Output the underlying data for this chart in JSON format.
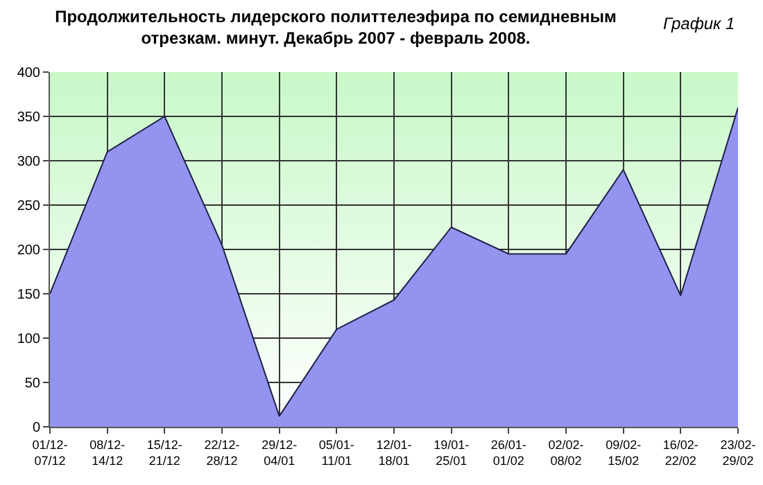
{
  "chart_data": {
    "type": "area",
    "title": "Продолжительность лидерского политтелеэфира по семидневным\nотрезкам. минут. Декабрь 2007 - февраль 2008.",
    "annotations": [
      "График 1"
    ],
    "categories": [
      "01/12-07/12",
      "08/12-14/12",
      "15/12-21/12",
      "22/12-28/12",
      "29/12-04/01",
      "05/01-11/01",
      "12/01-18/01",
      "19/01-25/01",
      "26/01-01/02",
      "02/02-08/02",
      "09/02-15/02",
      "16/02-22/02",
      "23/02-29/02"
    ],
    "series": [
      {
        "color": "#9393f0",
        "values": [
          150,
          310,
          350,
          205,
          12,
          110,
          143,
          225,
          195,
          195,
          290,
          148,
          360
        ]
      }
    ],
    "ylim": [
      0,
      400
    ],
    "yticks": [
      0,
      50,
      100,
      150,
      200,
      250,
      300,
      350,
      400
    ],
    "grid": true
  }
}
